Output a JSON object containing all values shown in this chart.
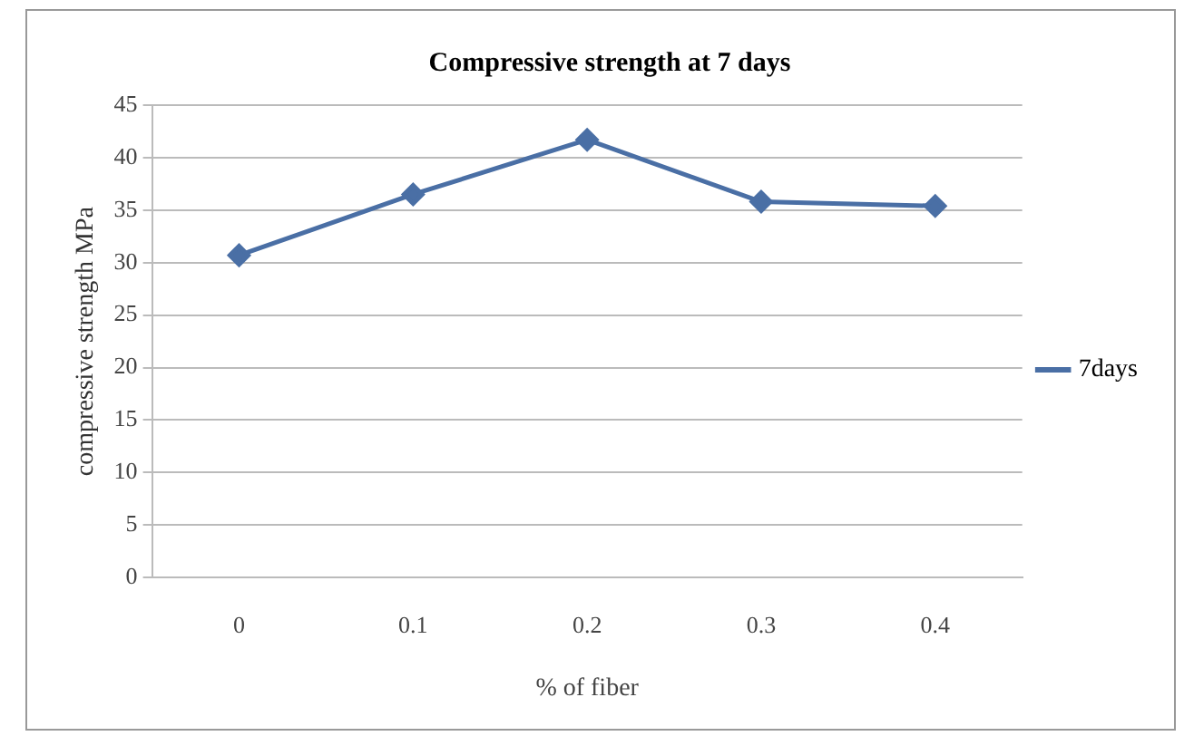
{
  "chart_data": {
    "type": "line",
    "title": "Compressive strength at 7 days",
    "xlabel": "% of fiber",
    "ylabel": "compressive strength MPa",
    "categories": [
      "0",
      "0.1",
      "0.2",
      "0.3",
      "0.4"
    ],
    "series": [
      {
        "name": "7days",
        "color": "#4a6fa5",
        "values": [
          30.7,
          36.5,
          41.7,
          35.8,
          35.4
        ]
      }
    ],
    "ylim": [
      0,
      45
    ],
    "yticks": [
      0,
      5,
      10,
      15,
      20,
      25,
      30,
      35,
      40,
      45
    ],
    "grid": "y",
    "legend": "right",
    "marker": "diamond",
    "line_style": "solid"
  }
}
